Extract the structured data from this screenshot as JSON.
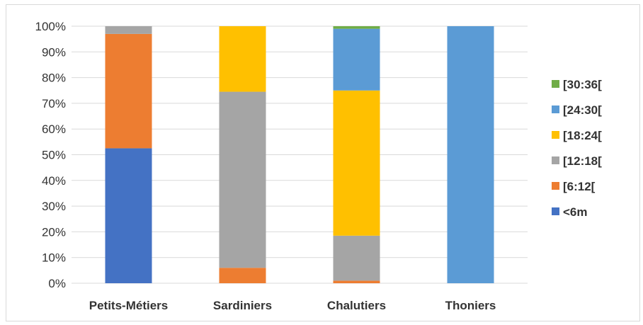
{
  "chart_data": {
    "type": "bar",
    "stacked": true,
    "percent": true,
    "categories": [
      "Petits-Métiers",
      "Sardiniers",
      "Chalutiers",
      "Thoniers"
    ],
    "series": [
      {
        "name": "<6m",
        "color": "#4472C4",
        "values": [
          52.5,
          0,
          0,
          0
        ]
      },
      {
        "name": "[6:12[",
        "color": "#ED7D31",
        "values": [
          44.5,
          6,
          1,
          0
        ]
      },
      {
        "name": "[12:18[",
        "color": "#A5A5A5",
        "values": [
          3,
          68.5,
          17.5,
          0
        ]
      },
      {
        "name": "[18:24[",
        "color": "#FFC000",
        "values": [
          0,
          25.5,
          56.5,
          0
        ]
      },
      {
        "name": "[24:30[",
        "color": "#5B9BD5",
        "values": [
          0,
          0,
          24,
          100
        ]
      },
      {
        "name": "[30:36[",
        "color": "#70AD47",
        "values": [
          0,
          0,
          1,
          0
        ]
      }
    ],
    "ylim": [
      0,
      100
    ],
    "yticks": [
      "0%",
      "10%",
      "20%",
      "30%",
      "40%",
      "50%",
      "60%",
      "70%",
      "80%",
      "90%",
      "100%"
    ],
    "grid": true,
    "legend_position": "right",
    "title": "",
    "xlabel": "",
    "ylabel": ""
  }
}
